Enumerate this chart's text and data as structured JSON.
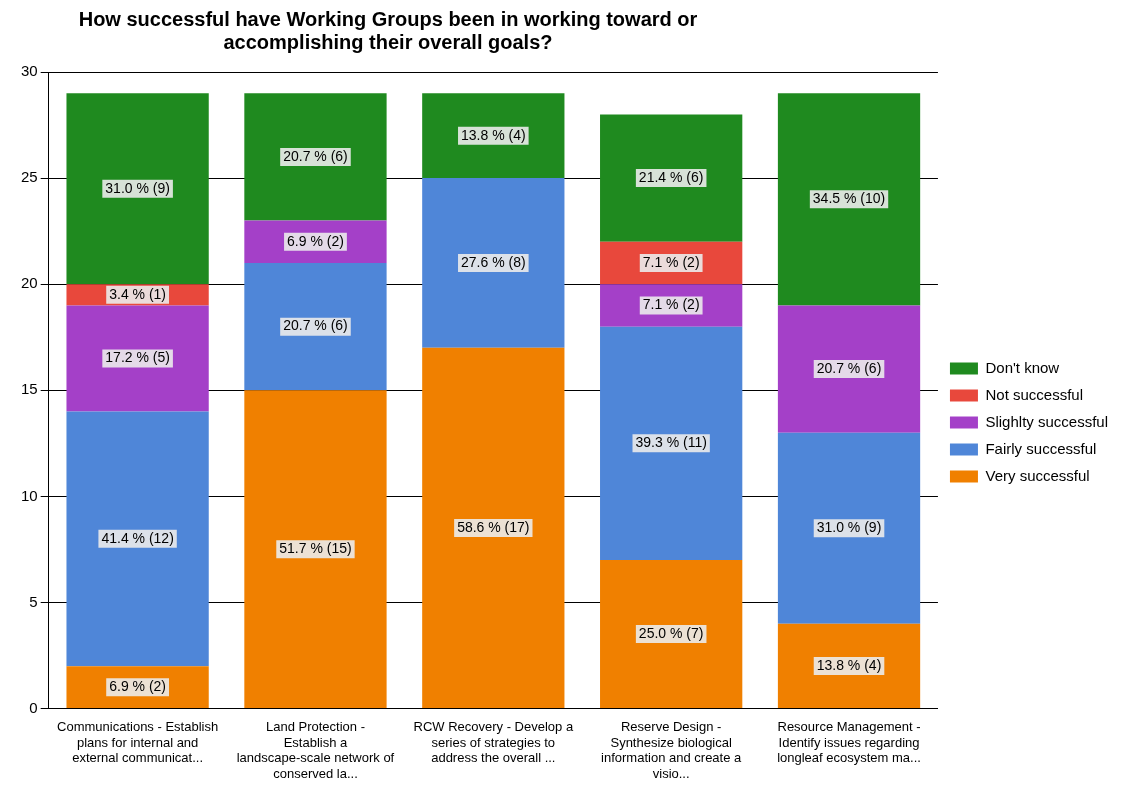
{
  "chart_data": {
    "type": "bar",
    "title": "How successful have Working Groups been in working toward or accomplishing their overall goals?",
    "categories": [
      "Communications - Establish plans for internal and external communicat...",
      "Land Protection - Establish a landscape-scale network of conserved la...",
      "RCW Recovery - Develop a series of strategies to address the overall ...",
      "Reserve Design - Synthesize biological information and create a visio...",
      "Resource Management - Identify issues regarding longleaf ecosystem ma..."
    ],
    "stacked": true,
    "ylim": [
      0,
      30
    ],
    "yticks": [
      0,
      5,
      10,
      15,
      20,
      25,
      30
    ],
    "grid": "y",
    "legend": "right",
    "series": [
      {
        "name": "Very successful",
        "color": "#f08000",
        "values": [
          2,
          15,
          17,
          7,
          4
        ],
        "value_labels": [
          "6.9 % (2)",
          "51.7 % (15)",
          "58.6 % (17)",
          "25.0 % (7)",
          "13.8 % (4)"
        ]
      },
      {
        "name": "Fairly successful",
        "color": "#4f86d8",
        "values": [
          12,
          6,
          8,
          11,
          9
        ],
        "value_labels": [
          "41.4 % (12)",
          "20.7 % (6)",
          "27.6 % (8)",
          "39.3 % (11)",
          "31.0 % (9)"
        ]
      },
      {
        "name": "Slighlty successful",
        "color": "#a440c8",
        "values": [
          5,
          2,
          0,
          2,
          6
        ],
        "value_labels": [
          "17.2 % (5)",
          "6.9 % (2)",
          null,
          "7.1 % (2)",
          "20.7 % (6)"
        ]
      },
      {
        "name": "Not successful",
        "color": "#e8483c",
        "values": [
          1,
          0,
          0,
          2,
          0
        ],
        "value_labels": [
          "3.4 % (1)",
          null,
          null,
          "7.1 % (2)",
          null
        ]
      },
      {
        "name": "Don't know",
        "color": "#1f8a1f",
        "values": [
          9,
          6,
          4,
          6,
          10
        ],
        "value_labels": [
          "31.0 % (9)",
          "20.7 % (6)",
          "13.8 % (4)",
          "21.4 % (6)",
          "34.5 % (10)"
        ]
      }
    ]
  }
}
